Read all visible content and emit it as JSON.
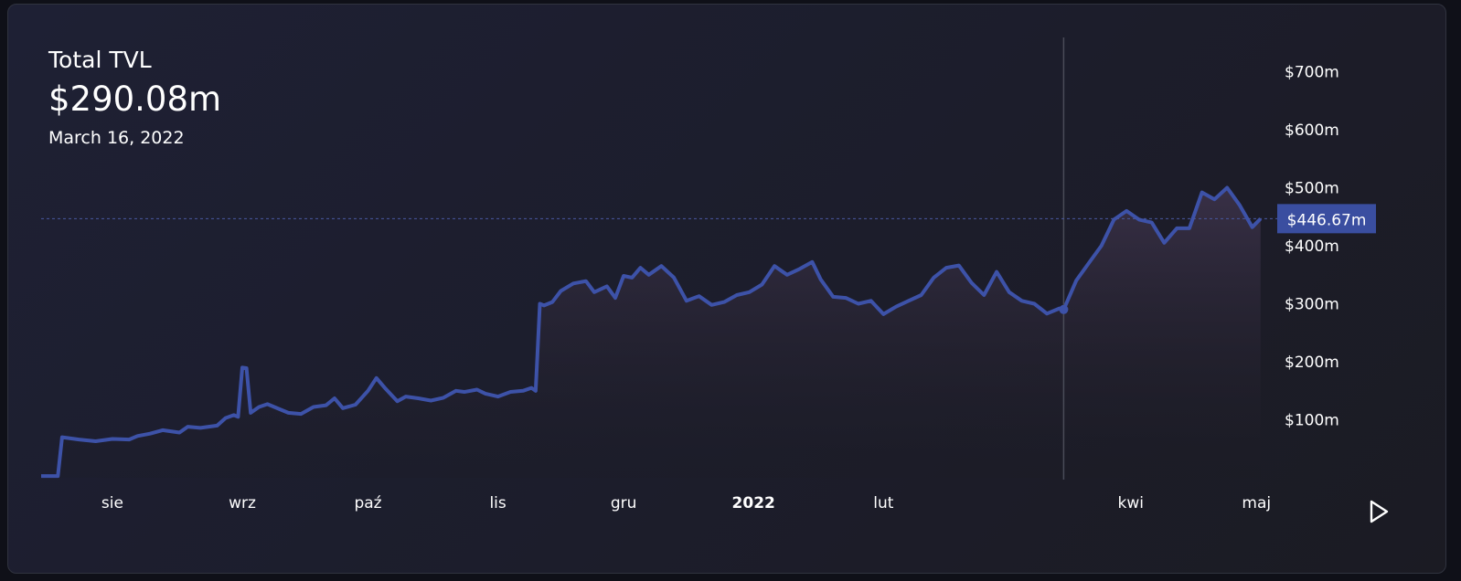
{
  "header": {
    "title": "Total TVL",
    "value": "$290.08m",
    "date": "March 16, 2022"
  },
  "colors": {
    "line": "#3d52a8",
    "area_top": "#3a3148",
    "area_bottom": "#1b1b23",
    "crosshair": "#4a4c58",
    "price_label_bg": "#3a4ea0",
    "text": "#ffffff"
  },
  "current_price_label": "$446.67m",
  "controls": {
    "play_icon": "play-icon"
  },
  "chart_data": {
    "type": "area",
    "title": "Total TVL",
    "xlabel": "",
    "ylabel": "",
    "ylim": [
      0,
      730
    ],
    "x_range": [
      "2021-07-15",
      "2022-05-04"
    ],
    "y_tick_labels": [
      "$100m",
      "$200m",
      "$300m",
      "$400m",
      "$500m",
      "$600m",
      "$700m"
    ],
    "y_tick_values": [
      100,
      200,
      300,
      400,
      500,
      600,
      700
    ],
    "x_tick_labels": [
      "sie",
      "wrz",
      "paź",
      "lis",
      "gru",
      "2022",
      "lut",
      "kwi",
      "maj"
    ],
    "x_tick_dates": [
      "2021-08-01",
      "2021-09-01",
      "2021-10-01",
      "2021-11-01",
      "2021-12-01",
      "2022-01-01",
      "2022-02-01",
      "2022-04-01",
      "2022-05-01"
    ],
    "crosshair_date": "2022-03-16",
    "crosshair_value": 290.08,
    "last_value": 446.67,
    "series": [
      {
        "unit": "$m",
        "points": [
          [
            "2021-07-15",
            3
          ],
          [
            "2021-07-19",
            3
          ],
          [
            "2021-07-20",
            70
          ],
          [
            "2021-07-24",
            66
          ],
          [
            "2021-07-28",
            63
          ],
          [
            "2021-08-01",
            67
          ],
          [
            "2021-08-05",
            66
          ],
          [
            "2021-08-07",
            72
          ],
          [
            "2021-08-10",
            76
          ],
          [
            "2021-08-13",
            82
          ],
          [
            "2021-08-17",
            78
          ],
          [
            "2021-08-19",
            88
          ],
          [
            "2021-08-22",
            86
          ],
          [
            "2021-08-26",
            90
          ],
          [
            "2021-08-28",
            103
          ],
          [
            "2021-08-30",
            108
          ],
          [
            "2021-08-31",
            105
          ],
          [
            "2021-09-01",
            190
          ],
          [
            "2021-09-02",
            189
          ],
          [
            "2021-09-03",
            112
          ],
          [
            "2021-09-05",
            122
          ],
          [
            "2021-09-07",
            127
          ],
          [
            "2021-09-10",
            118
          ],
          [
            "2021-09-12",
            112
          ],
          [
            "2021-09-15",
            110
          ],
          [
            "2021-09-18",
            122
          ],
          [
            "2021-09-21",
            125
          ],
          [
            "2021-09-23",
            137
          ],
          [
            "2021-09-25",
            120
          ],
          [
            "2021-09-28",
            126
          ],
          [
            "2021-10-01",
            150
          ],
          [
            "2021-10-03",
            172
          ],
          [
            "2021-10-05",
            155
          ],
          [
            "2021-10-08",
            132
          ],
          [
            "2021-10-10",
            140
          ],
          [
            "2021-10-13",
            137
          ],
          [
            "2021-10-16",
            133
          ],
          [
            "2021-10-19",
            138
          ],
          [
            "2021-10-22",
            150
          ],
          [
            "2021-10-24",
            148
          ],
          [
            "2021-10-27",
            152
          ],
          [
            "2021-10-29",
            145
          ],
          [
            "2021-11-01",
            140
          ],
          [
            "2021-11-04",
            148
          ],
          [
            "2021-11-07",
            150
          ],
          [
            "2021-11-09",
            155
          ],
          [
            "2021-11-10",
            150
          ],
          [
            "2021-11-11",
            300
          ],
          [
            "2021-11-12",
            297
          ],
          [
            "2021-11-14",
            303
          ],
          [
            "2021-11-16",
            322
          ],
          [
            "2021-11-19",
            335
          ],
          [
            "2021-11-22",
            339
          ],
          [
            "2021-11-24",
            320
          ],
          [
            "2021-11-27",
            330
          ],
          [
            "2021-11-29",
            310
          ],
          [
            "2021-12-01",
            348
          ],
          [
            "2021-12-03",
            345
          ],
          [
            "2021-12-05",
            362
          ],
          [
            "2021-12-07",
            350
          ],
          [
            "2021-12-10",
            365
          ],
          [
            "2021-12-13",
            345
          ],
          [
            "2021-12-16",
            305
          ],
          [
            "2021-12-19",
            313
          ],
          [
            "2021-12-22",
            298
          ],
          [
            "2021-12-25",
            303
          ],
          [
            "2021-12-28",
            315
          ],
          [
            "2021-12-31",
            320
          ],
          [
            "2022-01-03",
            333
          ],
          [
            "2022-01-06",
            365
          ],
          [
            "2022-01-09",
            350
          ],
          [
            "2022-01-12",
            360
          ],
          [
            "2022-01-15",
            372
          ],
          [
            "2022-01-17",
            342
          ],
          [
            "2022-01-20",
            312
          ],
          [
            "2022-01-23",
            310
          ],
          [
            "2022-01-26",
            300
          ],
          [
            "2022-01-29",
            305
          ],
          [
            "2022-02-01",
            282
          ],
          [
            "2022-02-04",
            295
          ],
          [
            "2022-02-07",
            305
          ],
          [
            "2022-02-10",
            315
          ],
          [
            "2022-02-13",
            345
          ],
          [
            "2022-02-16",
            362
          ],
          [
            "2022-02-19",
            366
          ],
          [
            "2022-02-22",
            336
          ],
          [
            "2022-02-25",
            315
          ],
          [
            "2022-02-28",
            355
          ],
          [
            "2022-03-03",
            320
          ],
          [
            "2022-03-06",
            305
          ],
          [
            "2022-03-09",
            300
          ],
          [
            "2022-03-12",
            283
          ],
          [
            "2022-03-15",
            292
          ],
          [
            "2022-03-16",
            290
          ],
          [
            "2022-03-19",
            340
          ],
          [
            "2022-03-22",
            370
          ],
          [
            "2022-03-25",
            400
          ],
          [
            "2022-03-28",
            445
          ],
          [
            "2022-03-31",
            460
          ],
          [
            "2022-04-03",
            445
          ],
          [
            "2022-04-06",
            440
          ],
          [
            "2022-04-09",
            405
          ],
          [
            "2022-04-12",
            430
          ],
          [
            "2022-04-15",
            430
          ],
          [
            "2022-04-18",
            492
          ],
          [
            "2022-04-21",
            480
          ],
          [
            "2022-04-24",
            500
          ],
          [
            "2022-04-27",
            470
          ],
          [
            "2022-04-30",
            432
          ],
          [
            "2022-05-02",
            446.67
          ]
        ]
      }
    ]
  }
}
